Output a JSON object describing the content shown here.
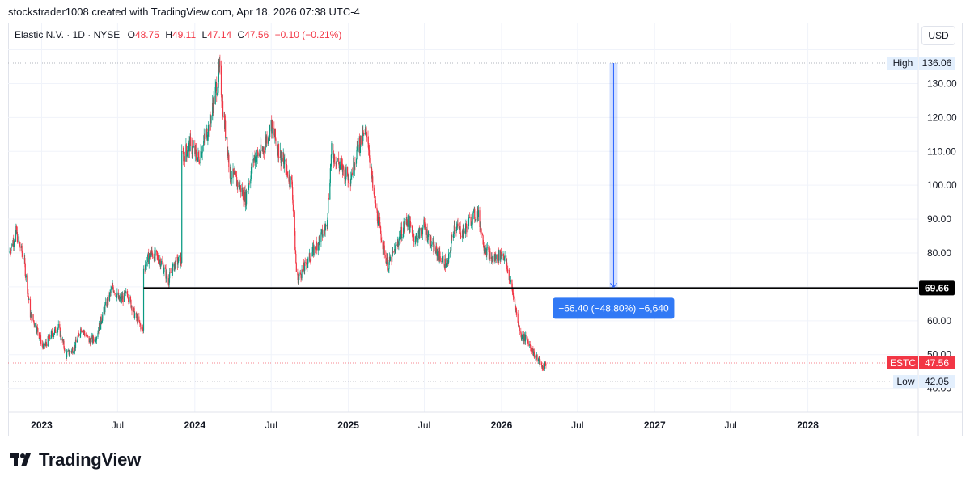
{
  "header": {
    "text": "stockstrader1008 created with TradingView.com, Apr 18, 2026 07:38 UTC-4"
  },
  "legend": {
    "name": "Elastic N.V. · 1D · NYSE",
    "o_label": "O",
    "o_value": "48.75",
    "h_label": "H",
    "h_value": "49.11",
    "l_label": "L",
    "l_value": "47.14",
    "c_label": "C",
    "c_value": "47.56",
    "change": "−0.10 (−0.21%)"
  },
  "currency": "USD",
  "brand": {
    "name": "TradingView"
  },
  "colors": {
    "up": "#089981",
    "down": "#f23645",
    "measure": "#2962ff",
    "badge": "#3179f5"
  },
  "chart_data": {
    "type": "candlestick",
    "symbol": "ESTC",
    "x_tick_labels": [
      "2023",
      "Jul",
      "2024",
      "Jul",
      "2025",
      "Jul",
      "2026",
      "Jul",
      "2027",
      "Jul",
      "2028"
    ],
    "y_tick_labels": [
      "50.00",
      "60.00",
      "70.00",
      "80.00",
      "90.00",
      "100.00",
      "110.00",
      "120.00",
      "130.00",
      "40.00"
    ],
    "ylim": [
      33,
      148
    ],
    "price_path": [
      [
        "2022-10-15",
        80
      ],
      [
        "2022-11-01",
        86
      ],
      [
        "2022-11-20",
        78
      ],
      [
        "2022-12-05",
        62
      ],
      [
        "2022-12-20",
        58
      ],
      [
        "2023-01-05",
        52
      ],
      [
        "2023-01-25",
        56
      ],
      [
        "2023-02-10",
        58
      ],
      [
        "2023-03-01",
        50
      ],
      [
        "2023-03-20",
        52
      ],
      [
        "2023-04-05",
        58
      ],
      [
        "2023-04-25",
        54
      ],
      [
        "2023-05-10",
        55
      ],
      [
        "2023-06-01",
        64
      ],
      [
        "2023-06-20",
        70
      ],
      [
        "2023-07-05",
        66
      ],
      [
        "2023-07-25",
        68
      ],
      [
        "2023-08-10",
        62
      ],
      [
        "2023-08-31",
        57
      ],
      [
        "2023-09-01",
        76
      ],
      [
        "2023-09-20",
        80
      ],
      [
        "2023-10-10",
        78
      ],
      [
        "2023-10-30",
        72
      ],
      [
        "2023-11-15",
        77
      ],
      [
        "2023-11-30",
        78
      ],
      [
        "2023-12-01",
        108
      ],
      [
        "2023-12-20",
        112
      ],
      [
        "2024-01-10",
        108
      ],
      [
        "2024-02-05",
        118
      ],
      [
        "2024-02-29",
        134
      ],
      [
        "2024-03-10",
        120
      ],
      [
        "2024-03-25",
        104
      ],
      [
        "2024-04-15",
        100
      ],
      [
        "2024-05-01",
        96
      ],
      [
        "2024-05-20",
        108
      ],
      [
        "2024-06-10",
        110
      ],
      [
        "2024-06-30",
        118
      ],
      [
        "2024-07-20",
        110
      ],
      [
        "2024-08-20",
        100
      ],
      [
        "2024-08-31",
        72
      ],
      [
        "2024-09-20",
        76
      ],
      [
        "2024-10-15",
        82
      ],
      [
        "2024-11-10",
        88
      ],
      [
        "2024-11-22",
        110
      ],
      [
        "2024-12-10",
        106
      ],
      [
        "2025-01-05",
        102
      ],
      [
        "2025-01-25",
        112
      ],
      [
        "2025-02-15",
        116
      ],
      [
        "2025-03-01",
        98
      ],
      [
        "2025-03-15",
        88
      ],
      [
        "2025-04-05",
        76
      ],
      [
        "2025-04-25",
        82
      ],
      [
        "2025-05-20",
        90
      ],
      [
        "2025-06-10",
        84
      ],
      [
        "2025-06-30",
        88
      ],
      [
        "2025-07-20",
        82
      ],
      [
        "2025-08-25",
        76
      ],
      [
        "2025-09-10",
        88
      ],
      [
        "2025-10-01",
        86
      ],
      [
        "2025-10-20",
        90
      ],
      [
        "2025-11-05",
        92
      ],
      [
        "2025-11-21",
        82
      ],
      [
        "2025-12-10",
        78
      ],
      [
        "2026-01-05",
        80
      ],
      [
        "2026-01-25",
        70
      ],
      [
        "2026-02-15",
        56
      ],
      [
        "2026-03-05",
        54
      ],
      [
        "2026-03-20",
        50
      ],
      [
        "2026-04-01",
        48
      ],
      [
        "2026-04-10",
        46
      ],
      [
        "2026-04-17",
        47.56
      ]
    ],
    "horizontal_line": {
      "value": 69.66,
      "label": "69.66",
      "start": "2023-09-01"
    },
    "measure": {
      "from": 136.06,
      "to": 69.66,
      "date": "2026-09-25",
      "label": "−66.40 (−48.80%) −6,640"
    },
    "price_labels": [
      {
        "name": "High",
        "value": 136.06,
        "label": "136.06"
      },
      {
        "name": "ESTC",
        "value": 47.56,
        "label": "47.56"
      },
      {
        "name": "Low",
        "value": 42.05,
        "label": "42.05"
      }
    ]
  }
}
